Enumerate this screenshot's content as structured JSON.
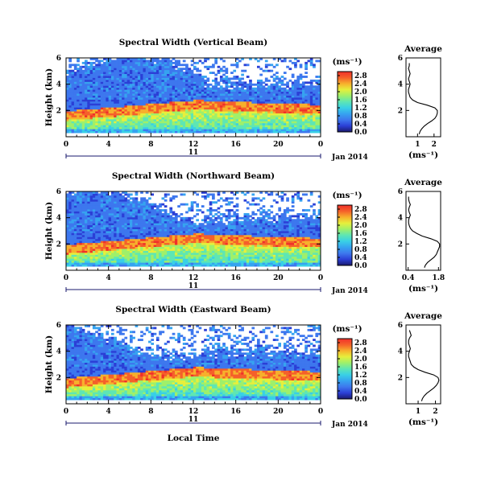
{
  "figure": {
    "xlabel": "Local Time",
    "date_label": "Jan 2014",
    "day_label": "11",
    "units_label": "(ms⁻¹)",
    "ylabel": "Height (km)",
    "avg_title": "Average"
  },
  "colormap": [
    "#1a1a6e",
    "#2b3fd6",
    "#3d77ee",
    "#36a3f0",
    "#39d0e6",
    "#5ee6b4",
    "#9ff06a",
    "#e6ef3c",
    "#f7b02c",
    "#f5602a",
    "#f0302a"
  ],
  "chart_data": [
    {
      "type": "heatmap",
      "title": "Spectral Width (Vertical Beam)",
      "x_range": [
        0,
        24
      ],
      "y_range": [
        0,
        6
      ],
      "x_ticks": [
        "0",
        "4",
        "8",
        "12",
        "16",
        "20",
        "0"
      ],
      "y_ticks": [
        "2",
        "4",
        "6"
      ],
      "colorbar_ticks": [
        "0.0",
        "0.4",
        "0.8",
        "1.2",
        "1.6",
        "2.0",
        "2.4",
        "2.8"
      ],
      "colorbar_range": [
        0,
        3.0
      ],
      "average": {
        "xlim": [
          0.3,
          2.4
        ],
        "x_ticks": [
          "1",
          "2"
        ],
        "heights": [
          0.2,
          0.4,
          0.6,
          0.8,
          1.0,
          1.2,
          1.4,
          1.6,
          1.8,
          2.0,
          2.2,
          2.4,
          2.6,
          2.8,
          3.0,
          3.2,
          3.4,
          3.6,
          3.8,
          4.0,
          4.2,
          4.4,
          4.6,
          4.8,
          5.0,
          5.2,
          5.4,
          5.6
        ],
        "values": [
          1.1,
          1.15,
          1.25,
          1.4,
          1.6,
          1.85,
          2.05,
          2.15,
          2.2,
          2.2,
          2.05,
          1.6,
          1.0,
          0.7,
          0.55,
          0.5,
          0.45,
          0.45,
          0.5,
          0.55,
          0.5,
          0.45,
          0.5,
          0.55,
          0.5,
          0.45,
          0.5,
          0.5
        ]
      }
    },
    {
      "type": "heatmap",
      "title": "Spectral Width (Northward Beam)",
      "x_range": [
        0,
        24
      ],
      "y_range": [
        0,
        6
      ],
      "x_ticks": [
        "0",
        "4",
        "8",
        "12",
        "16",
        "20",
        "0"
      ],
      "y_ticks": [
        "2",
        "4",
        "6"
      ],
      "colorbar_ticks": [
        "0.0",
        "0.4",
        "0.8",
        "1.2",
        "1.6",
        "2.0",
        "2.4",
        "2.8"
      ],
      "colorbar_range": [
        0,
        3.0
      ],
      "average": {
        "xlim": [
          0.3,
          1.9
        ],
        "x_ticks": [
          "0.4",
          "1.8"
        ],
        "heights": [
          0.2,
          0.4,
          0.6,
          0.8,
          1.0,
          1.2,
          1.4,
          1.6,
          1.8,
          2.0,
          2.2,
          2.4,
          2.6,
          2.8,
          3.0,
          3.2,
          3.4,
          3.6,
          3.8,
          4.0,
          4.2,
          4.4,
          4.6,
          4.8,
          5.0,
          5.2,
          5.4,
          5.6
        ],
        "values": [
          1.15,
          1.2,
          1.3,
          1.45,
          1.6,
          1.7,
          1.75,
          1.8,
          1.85,
          1.85,
          1.75,
          1.45,
          1.05,
          0.8,
          0.6,
          0.5,
          0.45,
          0.42,
          0.42,
          0.45,
          0.5,
          0.45,
          0.42,
          0.45,
          0.5,
          0.45,
          0.42,
          0.42
        ]
      }
    },
    {
      "type": "heatmap",
      "title": "Spectral Width (Eastward Beam)",
      "x_range": [
        0,
        24
      ],
      "y_range": [
        0,
        6
      ],
      "x_ticks": [
        "0",
        "4",
        "8",
        "12",
        "16",
        "20",
        "0"
      ],
      "y_ticks": [
        "2",
        "4",
        "6"
      ],
      "colorbar_ticks": [
        "0.0",
        "0.4",
        "0.8",
        "1.2",
        "1.6",
        "2.0",
        "2.4",
        "2.8"
      ],
      "colorbar_range": [
        0,
        3.0
      ],
      "average": {
        "xlim": [
          0.3,
          2.3
        ],
        "x_ticks": [
          "1",
          "2"
        ],
        "heights": [
          0.2,
          0.4,
          0.6,
          0.8,
          1.0,
          1.2,
          1.4,
          1.6,
          1.8,
          2.0,
          2.2,
          2.4,
          2.6,
          2.8,
          3.0,
          3.2,
          3.4,
          3.6,
          3.8,
          4.0,
          4.2,
          4.4,
          4.6,
          4.8,
          5.0,
          5.2,
          5.4,
          5.6
        ],
        "values": [
          1.2,
          1.25,
          1.35,
          1.5,
          1.7,
          1.9,
          2.05,
          2.15,
          2.2,
          2.15,
          1.9,
          1.4,
          1.0,
          0.75,
          0.6,
          0.55,
          0.5,
          0.45,
          0.45,
          0.5,
          0.55,
          0.5,
          0.45,
          0.45,
          0.5,
          0.6,
          0.55,
          0.5
        ]
      }
    }
  ]
}
